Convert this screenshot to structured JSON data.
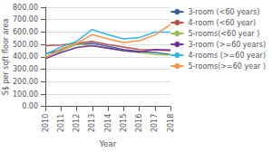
{
  "chart_data": {
    "type": "line",
    "xlabel": "Year",
    "ylabel": "S$ per sqft floor area",
    "x": [
      2010,
      2011,
      2012,
      2013,
      2014,
      2015,
      2016,
      2017,
      2018
    ],
    "xlim": [
      2010,
      2018
    ],
    "xticks": [
      2010,
      2011,
      2012,
      2013,
      2014,
      2015,
      2016,
      2017,
      2018
    ],
    "ylim": [
      0,
      800
    ],
    "yticks": [
      {
        "value": 0,
        "label": "0.00"
      },
      {
        "value": 100,
        "label": "100.00"
      },
      {
        "value": 200,
        "label": "200.00"
      },
      {
        "value": 300,
        "label": "300.00"
      },
      {
        "value": 400,
        "label": "400.00"
      },
      {
        "value": 500,
        "label": "500.00"
      },
      {
        "value": 600,
        "label": "600.00"
      },
      {
        "value": 700,
        "label": "700.00"
      },
      {
        "value": 800,
        "label": "800.00"
      }
    ],
    "grid": true,
    "legend": "upper right",
    "series": [
      {
        "name": "3-room (<60 years)",
        "color": "#3a5fa0",
        "values": [
          425,
          455,
          500,
          510,
          485,
          460,
          445,
          435,
          420
        ]
      },
      {
        "name": "4-room (<60 year)",
        "color": "#c0504d",
        "values": [
          490,
          495,
          510,
          525,
          500,
          480,
          460,
          455,
          450
        ]
      },
      {
        "name": "5-rooms(<60 year )",
        "color": "#9bbb59",
        "values": [
          400,
          450,
          505,
          490,
          470,
          450,
          435,
          420,
          415
        ]
      },
      {
        "name": "3-room (>=60 years)",
        "color": "#7030a0",
        "values": [
          385,
          435,
          475,
          490,
          470,
          450,
          440,
          460,
          455
        ]
      },
      {
        "name": "4-rooms (>=60 year)",
        "color": "#31b6e7",
        "values": [
          420,
          480,
          525,
          620,
          580,
          545,
          555,
          600,
          600
        ]
      },
      {
        "name": "5-rooms(>=60 year )",
        "color": "#f79646",
        "values": [
          395,
          465,
          510,
          580,
          545,
          515,
          530,
          575,
          660
        ]
      }
    ]
  }
}
